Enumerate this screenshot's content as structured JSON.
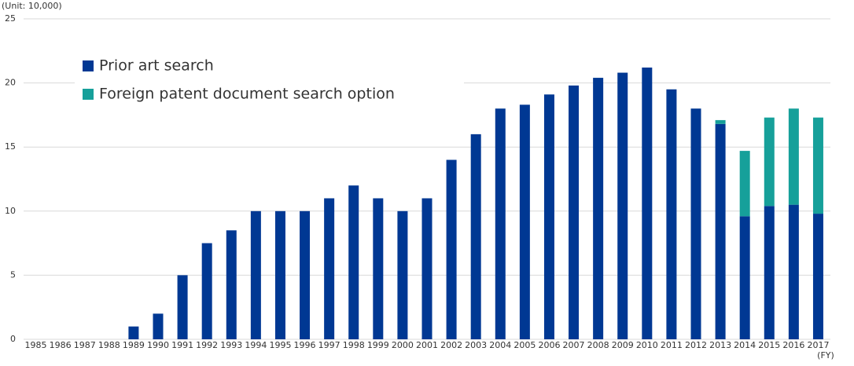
{
  "chart_data": {
    "type": "stacked-bar",
    "unit_label": "(Unit: 10,000)",
    "x_label": "(FY)",
    "categories": [
      "1985",
      "1986",
      "1987",
      "1988",
      "1989",
      "1990",
      "1991",
      "1992",
      "1993",
      "1994",
      "1995",
      "1996",
      "1997",
      "1998",
      "1999",
      "2000",
      "2001",
      "2002",
      "2003",
      "2004",
      "2005",
      "2006",
      "2007",
      "2008",
      "2009",
      "2010",
      "2011",
      "2012",
      "2013",
      "2014",
      "2015",
      "2016",
      "2017"
    ],
    "series": [
      {
        "name": "Prior art search",
        "color": "#003893",
        "values": [
          0,
          0,
          0,
          0,
          1,
          2,
          5,
          7.5,
          8.5,
          10,
          10,
          10,
          11,
          12,
          11,
          10,
          11,
          14,
          16,
          18,
          18.3,
          19.1,
          19.8,
          20.4,
          20.8,
          21.2,
          19.5,
          18,
          16.8,
          9.6,
          10.4,
          10.5,
          9.8
        ]
      },
      {
        "name": "Foreign patent document search option",
        "color": "#16a09a",
        "values": [
          null,
          null,
          null,
          null,
          null,
          null,
          null,
          null,
          null,
          null,
          null,
          null,
          null,
          null,
          null,
          null,
          null,
          null,
          null,
          null,
          null,
          null,
          null,
          null,
          null,
          null,
          null,
          null,
          0.3,
          5.1,
          6.9,
          7.5,
          7.5
        ]
      }
    ],
    "ylim": [
      0,
      25
    ],
    "yticks": [
      0,
      5,
      10,
      15,
      20,
      25
    ],
    "grid": true,
    "legend": "top-left"
  }
}
